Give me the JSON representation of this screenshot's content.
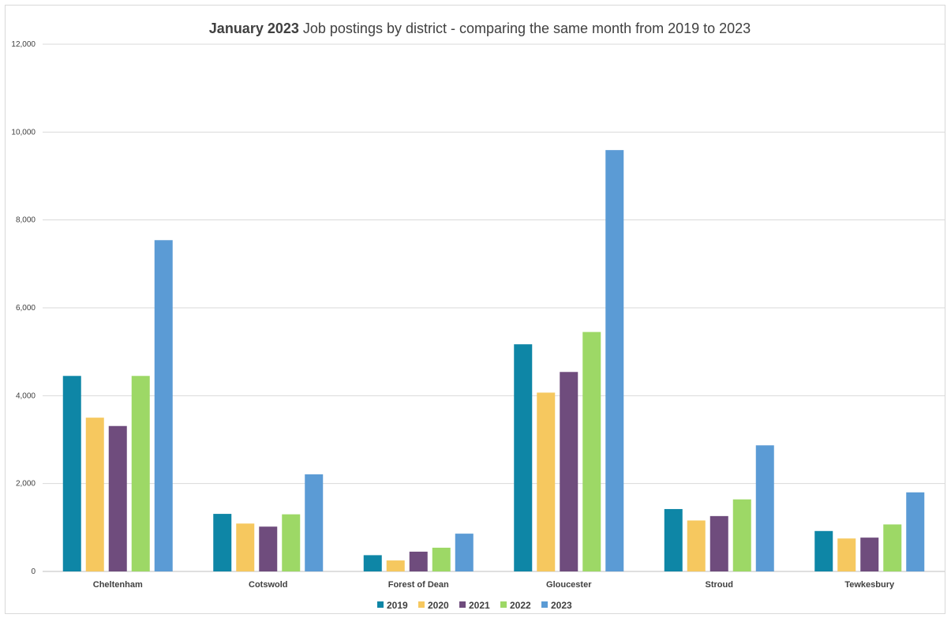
{
  "chart_data": {
    "type": "bar",
    "title_bold": "January 2023",
    "title_rest": " Job postings by district - comparing the same month from 2019 to 2023",
    "xlabel": "",
    "ylabel": "",
    "ylim": [
      0,
      12000
    ],
    "yticks": [
      0,
      2000,
      4000,
      6000,
      8000,
      10000,
      12000
    ],
    "ytick_labels": [
      "0",
      "2,000",
      "4,000",
      "6,000",
      "8,000",
      "10,000",
      "12,000"
    ],
    "grid": true,
    "legend_position": "bottom",
    "categories": [
      "Cheltenham",
      "Cotswold",
      "Forest of Dean",
      "Gloucester",
      "Stroud",
      "Tewkesbury"
    ],
    "series": [
      {
        "name": "2019",
        "color": "#0e86a6",
        "values": [
          4450,
          1310,
          370,
          5170,
          1420,
          920
        ]
      },
      {
        "name": "2020",
        "color": "#f6c85f",
        "values": [
          3500,
          1090,
          250,
          4070,
          1160,
          750
        ]
      },
      {
        "name": "2021",
        "color": "#6f4c7d",
        "values": [
          3310,
          1020,
          450,
          4540,
          1260,
          770
        ]
      },
      {
        "name": "2022",
        "color": "#9dd866",
        "values": [
          4450,
          1300,
          540,
          5450,
          1640,
          1070
        ]
      },
      {
        "name": "2023",
        "color": "#5b9bd5",
        "values": [
          7540,
          2210,
          860,
          9590,
          2870,
          1800
        ]
      }
    ]
  }
}
